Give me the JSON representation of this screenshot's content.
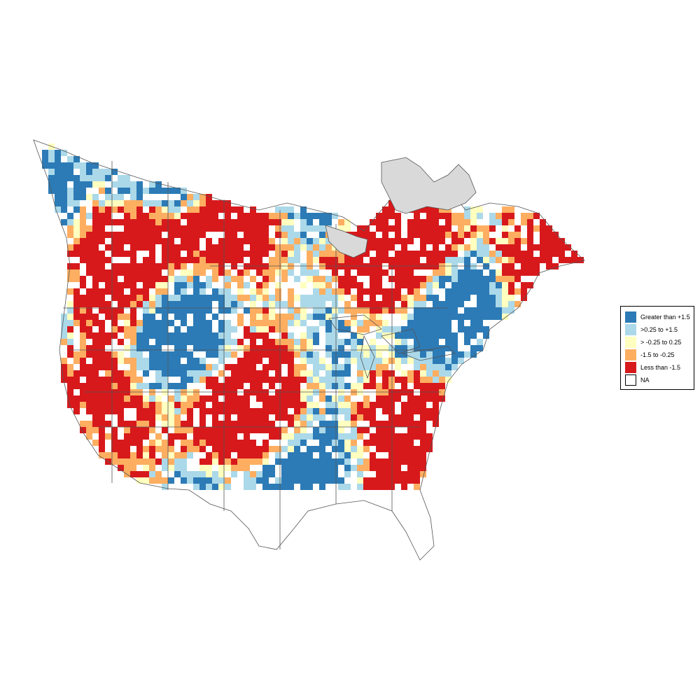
{
  "legend": {
    "items": [
      {
        "label": "Greater than +1.5",
        "color": "#2c7bb6"
      },
      {
        "label": ">0.25 to +1.5",
        "color": "#abd9e9"
      },
      {
        "label": "> -0.25 to 0.25",
        "color": "#ffffbf"
      },
      {
        "label": "-1.5 to -0.25",
        "color": "#fdae61"
      },
      {
        "label": "Less than -1.5",
        "color": "#d7191c"
      },
      {
        "label": "NA",
        "color": "#ffffff"
      }
    ]
  },
  "map": {
    "region": "North America",
    "no_data_color": "#d9d9d9",
    "boundary_color": "#555555"
  }
}
